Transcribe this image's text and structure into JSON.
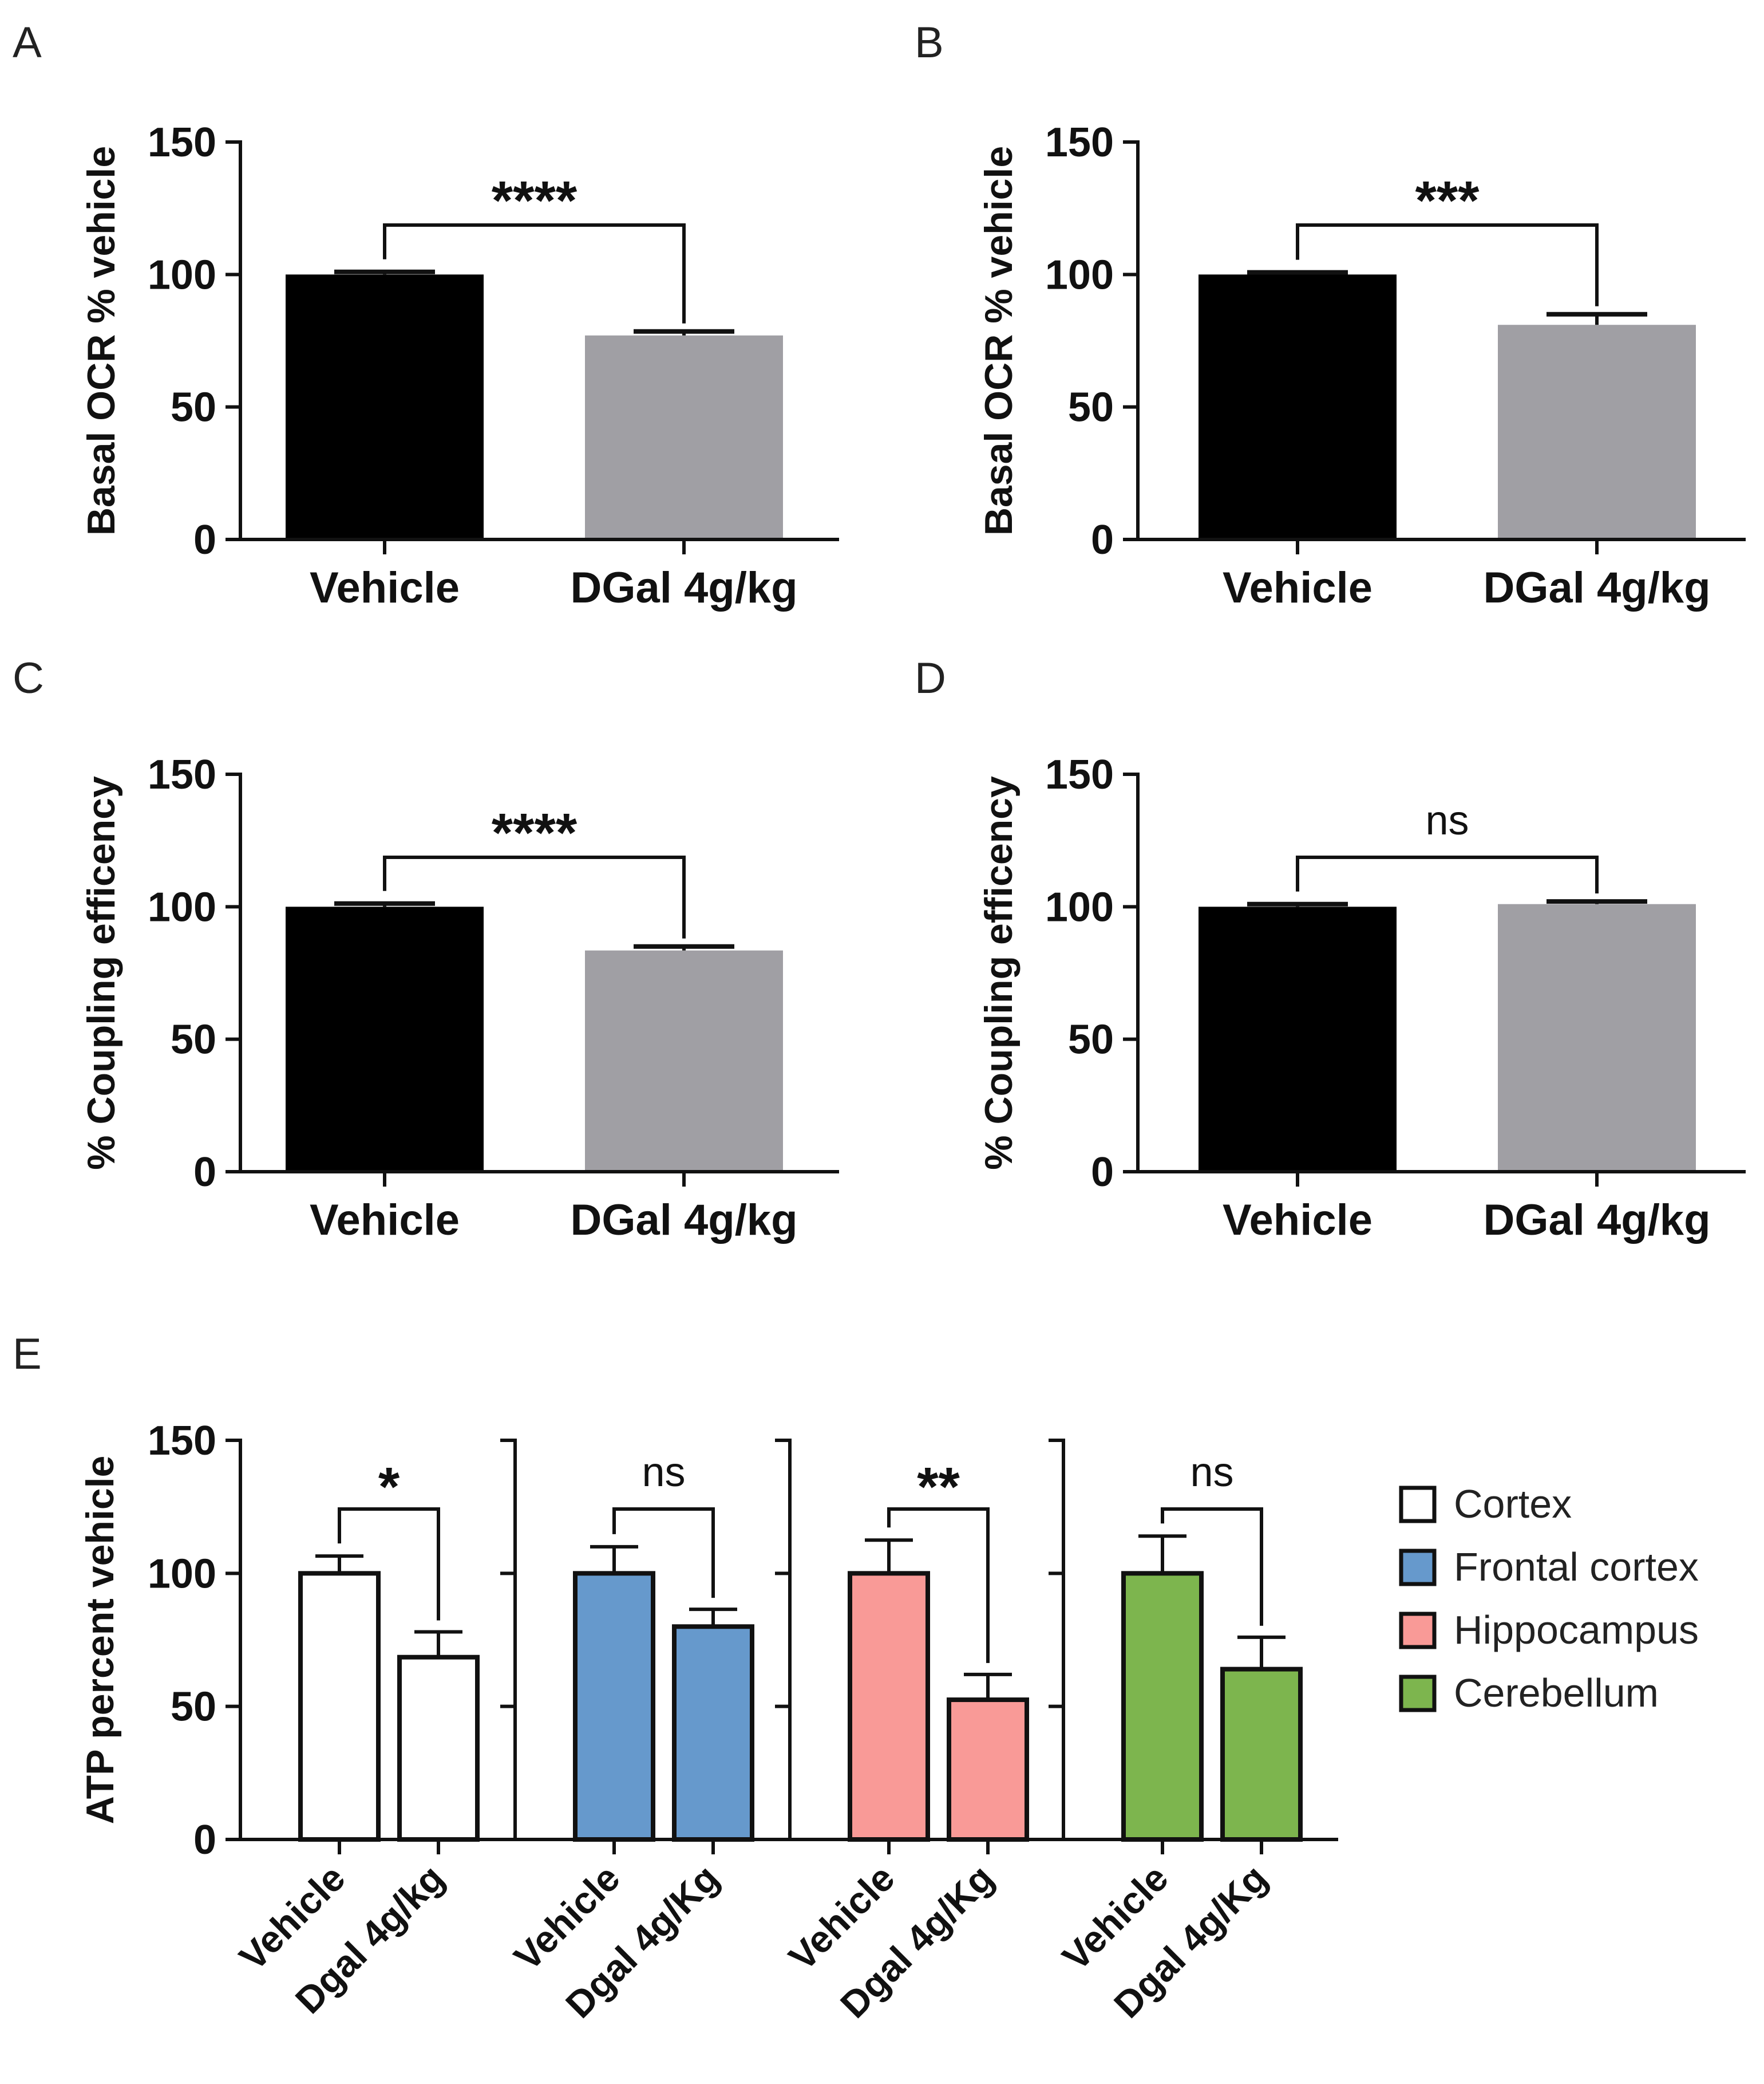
{
  "figure": {
    "colors": {
      "black": "#000000",
      "gray": "#a09fa4",
      "white": "#ffffff",
      "blue": "#6699cc",
      "pink": "#f99a97",
      "green": "#7db54e"
    }
  },
  "chart_data": [
    {
      "panel": "A",
      "type": "bar",
      "ylabel": "Basal OCR % vehicle",
      "ylim": [
        0,
        150
      ],
      "yticks": [
        "0",
        "50",
        "100",
        "150"
      ],
      "categories": [
        "Vehicle",
        "DGal 4g/kg"
      ],
      "values": [
        100,
        77
      ],
      "errors": [
        1,
        1.5
      ],
      "colors": [
        "#000000",
        "#a09fa4"
      ],
      "significance": "****"
    },
    {
      "panel": "B",
      "type": "bar",
      "ylabel": "Basal OCR % vehicle",
      "ylim": [
        0,
        150
      ],
      "yticks": [
        "0",
        "50",
        "100",
        "150"
      ],
      "categories": [
        "Vehicle",
        "DGal 4g/kg"
      ],
      "values": [
        100,
        81
      ],
      "errors": [
        0.8,
        4
      ],
      "colors": [
        "#000000",
        "#a09fa4"
      ],
      "significance": "***"
    },
    {
      "panel": "C",
      "type": "bar",
      "ylabel": "% Coupling efficency",
      "ylim": [
        0,
        150
      ],
      "yticks": [
        "0",
        "50",
        "100",
        "150"
      ],
      "categories": [
        "Vehicle",
        "DGal 4g/kg"
      ],
      "values": [
        100,
        83.5
      ],
      "errors": [
        1.2,
        1.5
      ],
      "colors": [
        "#000000",
        "#a09fa4"
      ],
      "significance": "****"
    },
    {
      "panel": "D",
      "type": "bar",
      "ylabel": "% Coupling efficency",
      "ylim": [
        0,
        150
      ],
      "yticks": [
        "0",
        "50",
        "100",
        "150"
      ],
      "categories": [
        "Vehicle",
        "DGal 4g/kg"
      ],
      "values": [
        100,
        101
      ],
      "errors": [
        1,
        1
      ],
      "colors": [
        "#000000",
        "#a09fa4"
      ],
      "significance": "ns"
    },
    {
      "panel": "E",
      "type": "bar",
      "ylabel": "ATP percent vehicle",
      "ylim": [
        0,
        150
      ],
      "yticks": [
        "0",
        "50",
        "100",
        "150"
      ],
      "groups": [
        {
          "name": "Cortex",
          "color": "#ffffff",
          "categories": [
            "Vehicle",
            "Dgal 4g/kg"
          ],
          "values": [
            100,
            68.5
          ],
          "errors": [
            6.5,
            9.5
          ],
          "significance": "*"
        },
        {
          "name": "Frontal cortex",
          "color": "#6699cc",
          "categories": [
            "Vehicle",
            "Dgal 4g/Kg"
          ],
          "values": [
            100,
            80
          ],
          "errors": [
            10,
            6.5
          ],
          "significance": "ns"
        },
        {
          "name": "Hippocampus",
          "color": "#f99a97",
          "categories": [
            "Vehicle",
            "Dgal 4g/Kg"
          ],
          "values": [
            100,
            52.5
          ],
          "errors": [
            12.5,
            9.5
          ],
          "significance": "**"
        },
        {
          "name": "Cerebellum",
          "color": "#7db54e",
          "categories": [
            "Vehicle",
            "Dgal 4g/Kg"
          ],
          "values": [
            100,
            64
          ],
          "errors": [
            14,
            12
          ],
          "significance": "ns"
        }
      ],
      "legend": [
        "Cortex",
        "Frontal cortex",
        "Hippocampus",
        "Cerebellum"
      ]
    }
  ]
}
